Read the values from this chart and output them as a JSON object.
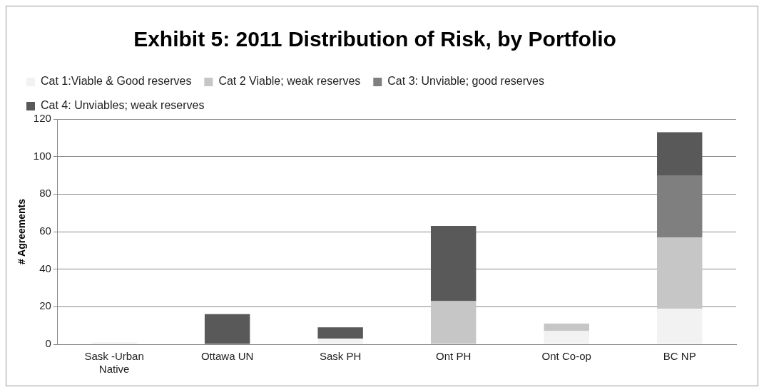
{
  "chart_data": {
    "type": "bar",
    "title": "Exhibit 5: 2011 Distribution of Risk, by Portfolio",
    "ylabel": "# Agreements",
    "categories": [
      "Sask -Urban Native",
      "Ottawa UN",
      "Sask PH",
      "Ont PH",
      "Ont Co-op",
      "BC NP"
    ],
    "series": [
      {
        "name": "Cat 1:Viable & Good reserves",
        "color": "#f2f2f2",
        "values": [
          1,
          0,
          3,
          0,
          7,
          19
        ]
      },
      {
        "name": "Cat 2 Viable; weak reserves",
        "color": "#c6c6c6",
        "values": [
          0,
          0,
          0,
          23,
          4,
          38
        ]
      },
      {
        "name": "Cat 3: Unviable; good reserves",
        "color": "#7f7f7f",
        "values": [
          0,
          0,
          0,
          0,
          0,
          33
        ]
      },
      {
        "name": "Cat 4: Unviables; weak reserves",
        "color": "#595959",
        "values": [
          0,
          16,
          6,
          40,
          0,
          23
        ]
      }
    ],
    "stacked": true,
    "ylim": [
      0,
      120
    ],
    "yticks": [
      0,
      20,
      40,
      60,
      80,
      100,
      120
    ],
    "grid": "y",
    "legend": "top"
  }
}
